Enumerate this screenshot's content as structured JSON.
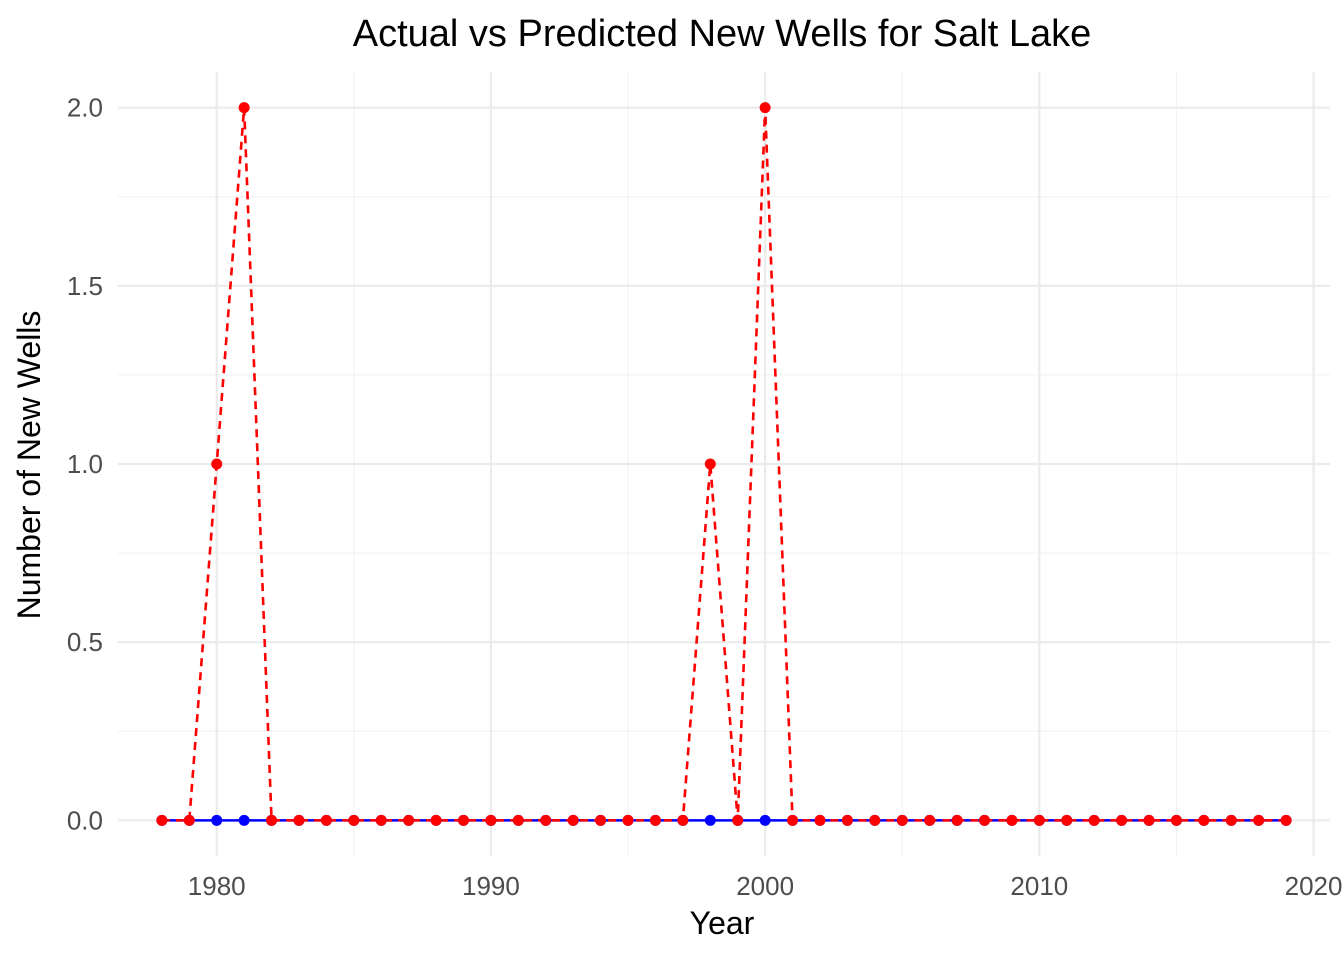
{
  "chart_data": {
    "type": "line",
    "title": "Actual vs Predicted New Wells for Salt Lake",
    "xlabel": "Year",
    "ylabel": "Number of New Wells",
    "xlim": [
      1976.4,
      2020.6
    ],
    "ylim": [
      -0.1,
      2.1
    ],
    "x_ticks": [
      1980,
      1990,
      2000,
      2010,
      2020
    ],
    "y_ticks": [
      0.0,
      0.5,
      1.0,
      1.5,
      2.0
    ],
    "x_tick_labels": [
      "1980",
      "1990",
      "2000",
      "2010",
      "2020"
    ],
    "y_tick_labels": [
      "0.0",
      "0.5",
      "1.0",
      "1.5",
      "2.0"
    ],
    "grid": true,
    "x": [
      1978,
      1979,
      1980,
      1981,
      1982,
      1983,
      1984,
      1985,
      1986,
      1987,
      1988,
      1989,
      1990,
      1991,
      1992,
      1993,
      1994,
      1995,
      1996,
      1997,
      1998,
      1999,
      2000,
      2001,
      2002,
      2003,
      2004,
      2005,
      2006,
      2007,
      2008,
      2009,
      2010,
      2011,
      2012,
      2013,
      2014,
      2015,
      2016,
      2017,
      2018,
      2019
    ],
    "series": [
      {
        "color": "#0000ff",
        "line_style": "solid",
        "values": [
          0,
          0,
          0,
          0,
          0,
          0,
          0,
          0,
          0,
          0,
          0,
          0,
          0,
          0,
          0,
          0,
          0,
          0,
          0,
          0,
          0,
          0,
          0,
          0,
          0,
          0,
          0,
          0,
          0,
          0,
          0,
          0,
          0,
          0,
          0,
          0,
          0,
          0,
          0,
          0,
          0,
          0
        ]
      },
      {
        "color": "#ff0000",
        "line_style": "dashed",
        "values": [
          0,
          0,
          1,
          2,
          0,
          0,
          0,
          0,
          0,
          0,
          0,
          0,
          0,
          0,
          0,
          0,
          0,
          0,
          0,
          0,
          1,
          0,
          2,
          0,
          0,
          0,
          0,
          0,
          0,
          0,
          0,
          0,
          0,
          0,
          0,
          0,
          0,
          0,
          0,
          0,
          0,
          0
        ]
      }
    ]
  }
}
